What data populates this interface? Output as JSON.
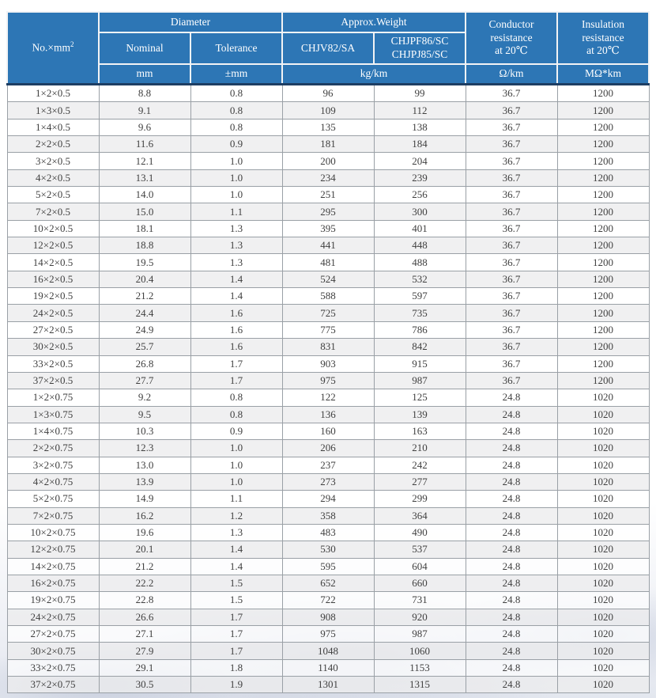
{
  "page": {
    "kind": "cable-specification-table",
    "colors": {
      "header_blue": "#2d76b5",
      "header_text": "#ffffff",
      "header_bottom_line": "#1d3e63",
      "cell_divider": "#f2f3f5",
      "row_alt_gray": "#ececec",
      "body_border_gray": "#9aa0a6",
      "body_text": "#404040"
    }
  },
  "table": {
    "header": {
      "no_label": "No.×mm",
      "no_sup": "2",
      "group_diameter": "Diameter",
      "group_weight": "Approx.Weight",
      "sub_nominal": "Nominal",
      "sub_tolerance": "Tolerance",
      "sub_chjv": "CHJV82/SA",
      "sub_chjpf_line1": "CHJPF86/SC",
      "sub_chjpf_line2": "CHJPJ85/SC",
      "conductor_line1": "Conductor",
      "conductor_line2": "resistance",
      "conductor_line3": "at 20℃",
      "insulation_line1": "Insulation",
      "insulation_line2": "resistance",
      "insulation_line3": "at 20℃",
      "units": {
        "mm": "mm",
        "tolerance": "±mm",
        "weight": "kg/km",
        "resistance": "Ω/km",
        "insulation": "MΩ*km"
      }
    },
    "columns": [
      "No.×mm2",
      "Nominal",
      "Tolerance",
      "CHJV82/SA",
      "CHJPF86/SC CHJPJ85/SC",
      "Conductor resistance at 20℃",
      "Insulation resistance at 20℃"
    ],
    "rows": [
      [
        "1×2×0.5",
        "8.8",
        "0.8",
        "96",
        "99",
        "36.7",
        "1200"
      ],
      [
        "1×3×0.5",
        "9.1",
        "0.8",
        "109",
        "112",
        "36.7",
        "1200"
      ],
      [
        "1×4×0.5",
        "9.6",
        "0.8",
        "135",
        "138",
        "36.7",
        "1200"
      ],
      [
        "2×2×0.5",
        "11.6",
        "0.9",
        "181",
        "184",
        "36.7",
        "1200"
      ],
      [
        "3×2×0.5",
        "12.1",
        "1.0",
        "200",
        "204",
        "36.7",
        "1200"
      ],
      [
        "4×2×0.5",
        "13.1",
        "1.0",
        "234",
        "239",
        "36.7",
        "1200"
      ],
      [
        "5×2×0.5",
        "14.0",
        "1.0",
        "251",
        "256",
        "36.7",
        "1200"
      ],
      [
        "7×2×0.5",
        "15.0",
        "1.1",
        "295",
        "300",
        "36.7",
        "1200"
      ],
      [
        "10×2×0.5",
        "18.1",
        "1.3",
        "395",
        "401",
        "36.7",
        "1200"
      ],
      [
        "12×2×0.5",
        "18.8",
        "1.3",
        "441",
        "448",
        "36.7",
        "1200"
      ],
      [
        "14×2×0.5",
        "19.5",
        "1.3",
        "481",
        "488",
        "36.7",
        "1200"
      ],
      [
        "16×2×0.5",
        "20.4",
        "1.4",
        "524",
        "532",
        "36.7",
        "1200"
      ],
      [
        "19×2×0.5",
        "21.2",
        "1.4",
        "588",
        "597",
        "36.7",
        "1200"
      ],
      [
        "24×2×0.5",
        "24.4",
        "1.6",
        "725",
        "735",
        "36.7",
        "1200"
      ],
      [
        "27×2×0.5",
        "24.9",
        "1.6",
        "775",
        "786",
        "36.7",
        "1200"
      ],
      [
        "30×2×0.5",
        "25.7",
        "1.6",
        "831",
        "842",
        "36.7",
        "1200"
      ],
      [
        "33×2×0.5",
        "26.8",
        "1.7",
        "903",
        "915",
        "36.7",
        "1200"
      ],
      [
        "37×2×0.5",
        "27.7",
        "1.7",
        "975",
        "987",
        "36.7",
        "1200"
      ],
      [
        "1×2×0.75",
        "9.2",
        "0.8",
        "122",
        "125",
        "24.8",
        "1020"
      ],
      [
        "1×3×0.75",
        "9.5",
        "0.8",
        "136",
        "139",
        "24.8",
        "1020"
      ],
      [
        "1×4×0.75",
        "10.3",
        "0.9",
        "160",
        "163",
        "24.8",
        "1020"
      ],
      [
        "2×2×0.75",
        "12.3",
        "1.0",
        "206",
        "210",
        "24.8",
        "1020"
      ],
      [
        "3×2×0.75",
        "13.0",
        "1.0",
        "237",
        "242",
        "24.8",
        "1020"
      ],
      [
        "4×2×0.75",
        "13.9",
        "1.0",
        "273",
        "277",
        "24.8",
        "1020"
      ],
      [
        "5×2×0.75",
        "14.9",
        "1.1",
        "294",
        "299",
        "24.8",
        "1020"
      ],
      [
        "7×2×0.75",
        "16.2",
        "1.2",
        "358",
        "364",
        "24.8",
        "1020"
      ],
      [
        "10×2×0.75",
        "19.6",
        "1.3",
        "483",
        "490",
        "24.8",
        "1020"
      ],
      [
        "12×2×0.75",
        "20.1",
        "1.4",
        "530",
        "537",
        "24.8",
        "1020"
      ],
      [
        "14×2×0.75",
        "21.2",
        "1.4",
        "595",
        "604",
        "24.8",
        "1020"
      ],
      [
        "16×2×0.75",
        "22.2",
        "1.5",
        "652",
        "660",
        "24.8",
        "1020"
      ],
      [
        "19×2×0.75",
        "22.8",
        "1.5",
        "722",
        "731",
        "24.8",
        "1020"
      ],
      [
        "24×2×0.75",
        "26.6",
        "1.7",
        "908",
        "920",
        "24.8",
        "1020"
      ],
      [
        "27×2×0.75",
        "27.1",
        "1.7",
        "975",
        "987",
        "24.8",
        "1020"
      ],
      [
        "30×2×0.75",
        "27.9",
        "1.7",
        "1048",
        "1060",
        "24.8",
        "1020"
      ],
      [
        "33×2×0.75",
        "29.1",
        "1.8",
        "1140",
        "1153",
        "24.8",
        "1020"
      ],
      [
        "37×2×0.75",
        "30.5",
        "1.9",
        "1301",
        "1315",
        "24.8",
        "1020"
      ]
    ]
  }
}
